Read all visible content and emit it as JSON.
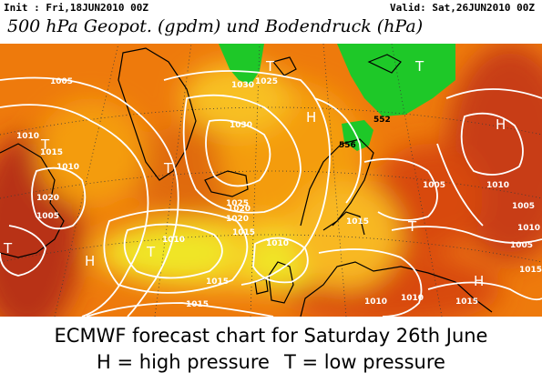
{
  "header": {
    "init": "Init : Fri,18JUN2010 00Z",
    "valid": "Valid: Sat,26JUN2010 00Z",
    "title": "500 hPa Geopot. (gpdm) und Bodendruck (hPa)"
  },
  "map": {
    "colors": {
      "deep_red": "#b83214",
      "red": "#d84a10",
      "orange": "#ee7a0c",
      "light_orange": "#f49c10",
      "yellow_orange": "#f8c020",
      "yellow": "#f0e628",
      "green": "#1ec828",
      "contour": "#ffffff",
      "coast": "#000000",
      "graticule": "#3a3a3a"
    },
    "pressure_labels": [
      "1005",
      "1010",
      "1015",
      "1020",
      "1025",
      "1030",
      "1005",
      "1010",
      "1015",
      "1020",
      "1025",
      "1030",
      "1010",
      "1015",
      "1020",
      "1010",
      "1015",
      "1010",
      "1005",
      "1005",
      "1010",
      "1015",
      "1005",
      "1015",
      "1010",
      "1010",
      "1015"
    ],
    "geopotential_labels": [
      "552",
      "556"
    ],
    "symbols": [
      "T",
      "H",
      "T",
      "H",
      "T",
      "T",
      "H",
      "T",
      "T",
      "H",
      "T"
    ]
  },
  "caption": {
    "line1": "ECMWF forecast chart for Saturday 26th June",
    "legend_high": "H = high pressure",
    "legend_low": "T = low pressure"
  }
}
